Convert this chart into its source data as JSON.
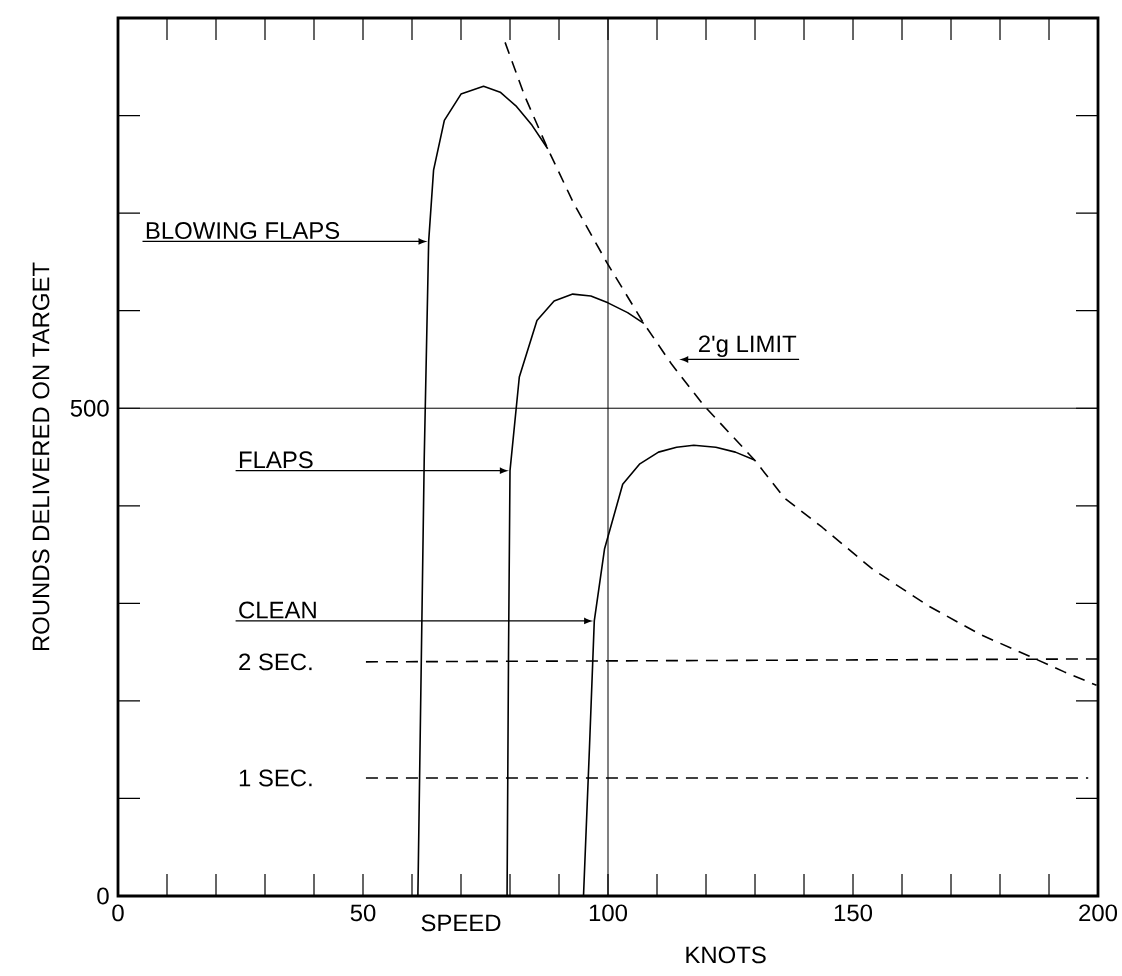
{
  "chart_data": {
    "type": "line",
    "xlabel": "SPEED",
    "ylabel": "ROUNDS DELIVERED ON TARGET",
    "annotations": [
      "KNOTS"
    ],
    "xlim": [
      0,
      200
    ],
    "ylim": [
      0,
      900
    ],
    "xticks": [
      0,
      {
        "value": 10,
        "label": null
      },
      {
        "value": 20,
        "label": null
      },
      {
        "value": 30,
        "label": null
      },
      {
        "value": 40,
        "label": null
      },
      50,
      {
        "value": 60,
        "label": null
      },
      {
        "value": 70,
        "label": null
      },
      {
        "value": 80,
        "label": null
      },
      {
        "value": 90,
        "label": null
      },
      100,
      {
        "value": 110,
        "label": null
      },
      {
        "value": 120,
        "label": null
      },
      {
        "value": 130,
        "label": null
      },
      {
        "value": 140,
        "label": null
      },
      150,
      {
        "value": 160,
        "label": null
      },
      {
        "value": 170,
        "label": null
      },
      {
        "value": 180,
        "label": null
      },
      {
        "value": 190,
        "label": null
      },
      200
    ],
    "yticks": [
      0,
      {
        "value": 100,
        "label": null
      },
      {
        "value": 200,
        "label": null
      },
      {
        "value": 300,
        "label": null
      },
      {
        "value": 400,
        "label": null
      },
      500,
      {
        "value": 600,
        "label": null
      },
      {
        "value": 700,
        "label": null
      },
      {
        "value": 800,
        "label": null
      }
    ],
    "ref_lines": [
      {
        "axis": "x",
        "value": 100
      },
      {
        "axis": "y",
        "value": 500
      }
    ],
    "series": [
      {
        "name": "BLOWING FLAPS",
        "color": "#000000",
        "line_style": "solid",
        "x": [
          61.2,
          62.5,
          63.4,
          64.4,
          66.6,
          70,
          74.6,
          78,
          81.2,
          84.5,
          87.7
        ],
        "values": [
          0,
          450,
          671,
          744,
          795,
          822,
          830,
          824,
          810,
          790,
          766
        ]
      },
      {
        "name": "FLAPS",
        "color": "#000000",
        "line_style": "solid",
        "x": [
          79.4,
          79.7,
          80,
          81.9,
          85.5,
          89,
          92.8,
          96.5,
          100,
          104,
          107.3
        ],
        "values": [
          0,
          250,
          436,
          532,
          590,
          610,
          617,
          615,
          608,
          598,
          587
        ]
      },
      {
        "name": "CLEAN",
        "color": "#000000",
        "line_style": "solid",
        "x": [
          95,
          96.2,
          97.2,
          99.3,
          103,
          106.5,
          110.3,
          114,
          117.5,
          122,
          126,
          129.9
        ],
        "values": [
          0,
          150,
          282,
          356,
          422,
          443,
          455,
          460,
          462,
          460,
          455,
          447
        ]
      },
      {
        "name": "2'g LIMIT",
        "color": "#000000",
        "line_style": "dashed",
        "x": [
          79,
          83,
          87.7,
          93,
          99.8,
          107.3,
          113,
          119.7,
          129.9,
          136,
          143.7,
          154,
          165.5,
          176,
          185.9,
          193,
          199.7
        ],
        "values": [
          875,
          820,
          766,
          710,
          649,
          587,
          545,
          502,
          447,
          408,
          378,
          335,
          297,
          268,
          246,
          230,
          216
        ]
      },
      {
        "name": "2 SEC.",
        "color": "#000000",
        "line_style": "dashed",
        "x": [
          50.6,
          200
        ],
        "values": [
          240,
          243
        ]
      },
      {
        "name": "1 SEC.",
        "color": "#000000",
        "line_style": "dashed",
        "x": [
          50.6,
          198
        ],
        "values": [
          121,
          121
        ]
      }
    ]
  }
}
